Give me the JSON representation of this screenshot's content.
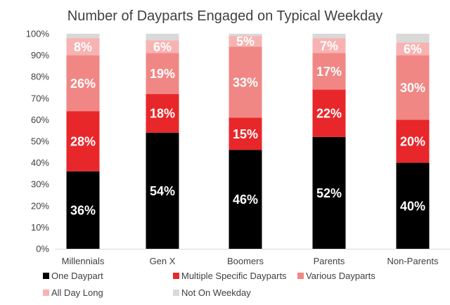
{
  "chart_data": {
    "type": "bar",
    "stacked": true,
    "title": "Number of Dayparts Engaged on Typical Weekday",
    "categories": [
      "Millennials",
      "Gen X",
      "Boomers",
      "Parents",
      "Non-Parents"
    ],
    "ylim": [
      0,
      100
    ],
    "yticks": [
      "0%",
      "10%",
      "20%",
      "30%",
      "40%",
      "50%",
      "60%",
      "70%",
      "80%",
      "90%",
      "100%"
    ],
    "grid": false,
    "legend_position": "bottom",
    "series": [
      {
        "name": "One Daypart",
        "color": "#000000",
        "values": [
          36,
          54,
          46,
          52,
          40
        ],
        "labels": [
          "36%",
          "54%",
          "46%",
          "52%",
          "40%"
        ]
      },
      {
        "name": "Multiple Specific Dayparts",
        "color": "#e8272a",
        "values": [
          28,
          18,
          15,
          22,
          20
        ],
        "labels": [
          "28%",
          "18%",
          "15%",
          "22%",
          "20%"
        ]
      },
      {
        "name": "Various Dayparts",
        "color": "#f08784",
        "values": [
          26,
          19,
          33,
          17,
          30
        ],
        "labels": [
          "26%",
          "19%",
          "33%",
          "17%",
          "30%"
        ]
      },
      {
        "name": "All Day Long",
        "color": "#f7b3b2",
        "values": [
          8,
          6,
          5,
          7,
          6
        ],
        "labels": [
          "8%",
          "6%",
          "5%",
          "7%",
          "6%"
        ]
      },
      {
        "name": "Not On Weekday",
        "color": "#d9d9d9",
        "values": [
          2,
          3,
          1,
          2,
          4
        ],
        "labels": [
          "",
          "",
          "",
          "",
          ""
        ]
      }
    ]
  }
}
